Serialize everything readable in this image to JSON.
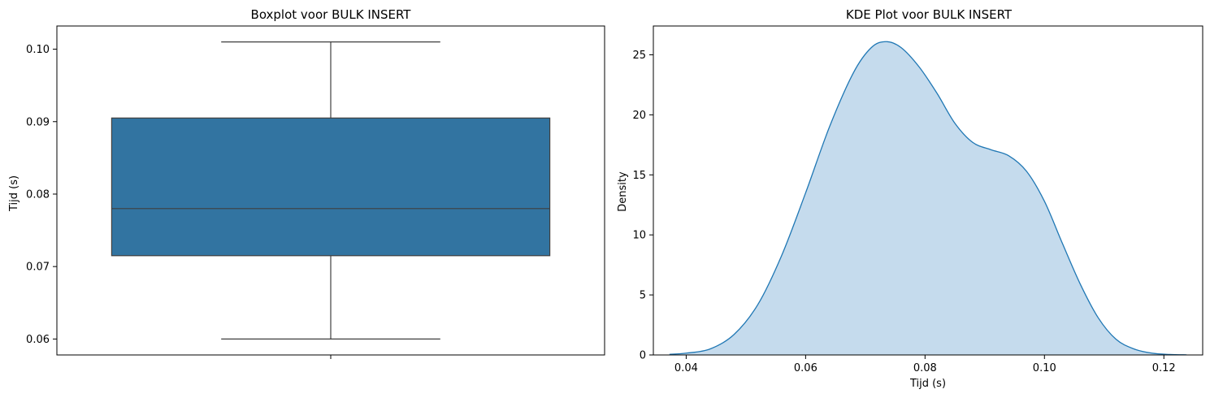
{
  "colors": {
    "box_fill": "#3274a1",
    "box_edge": "#3f3f3f",
    "kde_line": "#1f77b4",
    "kde_fill": "#c5dbed",
    "axes": "#000000"
  },
  "chart_data": [
    {
      "type": "boxplot",
      "title": "Boxplot voor BULK INSERT",
      "xlabel": "",
      "ylabel": "Tijd (s)",
      "ylim": [
        0.0578,
        0.1032
      ],
      "yticks": [
        0.06,
        0.07,
        0.08,
        0.09,
        0.1
      ],
      "ytick_labels": [
        "0.06",
        "0.07",
        "0.08",
        "0.09",
        "0.10"
      ],
      "stats": {
        "whisker_low": 0.06,
        "q1": 0.0715,
        "median": 0.078,
        "q3": 0.0905,
        "whisker_high": 0.101
      },
      "grid": false,
      "legend": "none"
    },
    {
      "type": "area",
      "title": "KDE Plot voor BULK INSERT",
      "xlabel": "Tijd (s)",
      "ylabel": "Density",
      "xlim": [
        0.0345,
        0.1265
      ],
      "ylim": [
        0,
        27.4
      ],
      "xticks": [
        0.04,
        0.06,
        0.08,
        0.1,
        0.12
      ],
      "xtick_labels": [
        "0.04",
        "0.06",
        "0.08",
        "0.10",
        "0.12"
      ],
      "yticks": [
        0,
        5,
        10,
        15,
        20,
        25
      ],
      "ytick_labels": [
        "0",
        "5",
        "10",
        "15",
        "20",
        "25"
      ],
      "x": [
        0.0372,
        0.04,
        0.044,
        0.048,
        0.052,
        0.056,
        0.06,
        0.064,
        0.068,
        0.071,
        0.0735,
        0.076,
        0.079,
        0.082,
        0.085,
        0.088,
        0.091,
        0.094,
        0.097,
        0.1,
        0.103,
        0.106,
        0.109,
        0.112,
        0.115,
        0.118,
        0.121,
        0.1238
      ],
      "y": [
        0.05,
        0.15,
        0.5,
        1.7,
        4.2,
        8.3,
        13.5,
        19.0,
        23.5,
        25.6,
        26.1,
        25.6,
        24.0,
        21.8,
        19.3,
        17.7,
        17.1,
        16.6,
        15.3,
        12.8,
        9.3,
        5.9,
        3.1,
        1.3,
        0.5,
        0.15,
        0.04,
        0.01
      ],
      "grid": false,
      "legend": "none"
    }
  ]
}
